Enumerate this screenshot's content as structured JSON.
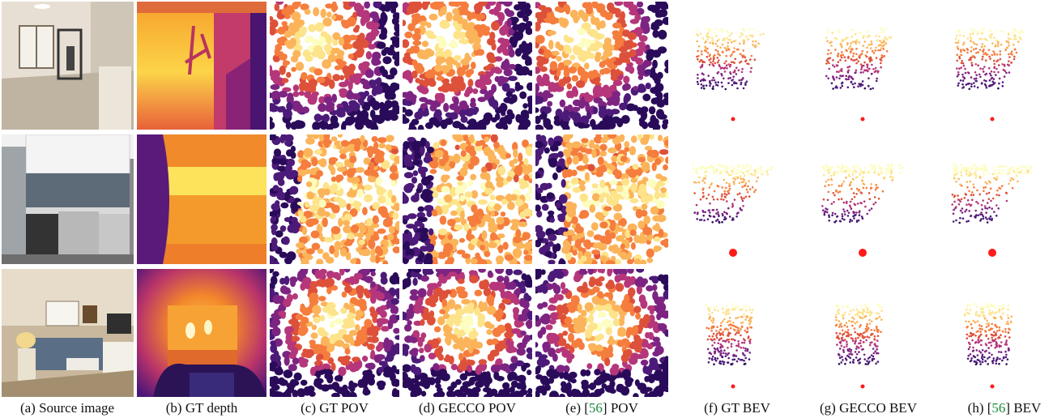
{
  "figure": {
    "columns": [
      {
        "id": "a",
        "pre": "(a) ",
        "ref": "",
        "post": "Source image"
      },
      {
        "id": "b",
        "pre": "(b) ",
        "ref": "",
        "post": "GT depth"
      },
      {
        "id": "c",
        "pre": "(c) ",
        "ref": "",
        "post": "GT POV"
      },
      {
        "id": "d",
        "pre": "(d) ",
        "ref": "",
        "post": "GECCO POV"
      },
      {
        "id": "e",
        "pre": "(e) [",
        "ref": "56",
        "post": "] POV"
      },
      {
        "id": "f",
        "pre": "(f) ",
        "ref": "",
        "post": "GT BEV"
      },
      {
        "id": "g",
        "pre": "(g) ",
        "ref": "",
        "post": "GECCO BEV"
      },
      {
        "id": "h",
        "pre": "(h) [",
        "ref": "56",
        "post": "] BEV"
      }
    ],
    "colors": {
      "ref_link": "#1a8a3a",
      "depth_near": "#2a0b5a",
      "depth_mid": "#c0387a",
      "depth_far": "#fcfdbf",
      "camera_dot": "#ff1a1a"
    }
  }
}
